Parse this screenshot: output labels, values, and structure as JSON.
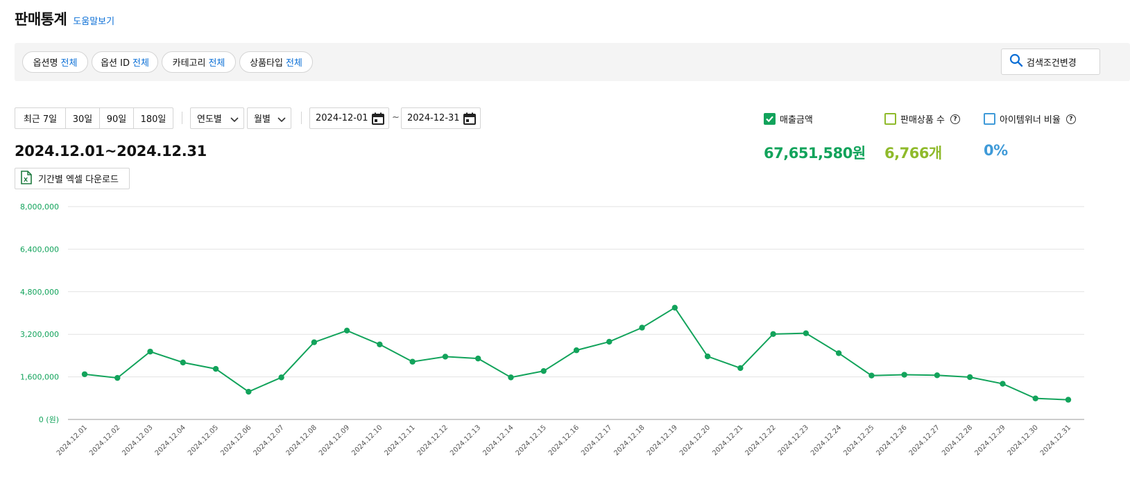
{
  "header": {
    "title": "판매통계",
    "help_link": "도움말보기"
  },
  "filters": [
    {
      "label": "옵션명",
      "value": "전체"
    },
    {
      "label": "옵션 ID",
      "value": "전체"
    },
    {
      "label": "카테고리",
      "value": "전체"
    },
    {
      "label": "상품타입",
      "value": "전체"
    }
  ],
  "search_button": {
    "label": "검색조건변경",
    "icon": "search-icon"
  },
  "period_buttons": [
    "최근 7일",
    "30일",
    "90일",
    "180일"
  ],
  "selects": {
    "yearly": "연도별",
    "monthly": "월별"
  },
  "date_range": {
    "start": "2024-12-01",
    "separator": "~",
    "end": "2024-12-31"
  },
  "range_title": "2024.12.01~2024.12.31",
  "excel_button": {
    "label": "기간별 엑셀 다운로드",
    "icon": "excel-file-icon"
  },
  "legend": [
    {
      "label": "매출금액",
      "checked": true,
      "color": "#12a35b",
      "has_help": false
    },
    {
      "label": "판매상품 수",
      "checked": false,
      "color": "#8fba2b",
      "has_help": true
    },
    {
      "label": "아이템위너 비율",
      "checked": false,
      "color": "#3f9ad8",
      "has_help": true
    }
  ],
  "metrics": {
    "sales_amount": {
      "value": "67,651,580원",
      "color": "#12a35b"
    },
    "items_sold": {
      "value": "6,766개",
      "color": "#8fba2b"
    },
    "winner_ratio": {
      "value": "0%",
      "color": "#3f9ad8"
    }
  },
  "chart_data": {
    "type": "line",
    "series": [
      {
        "name": "매출금액",
        "color": "#12a35b",
        "values": [
          1700000,
          1560000,
          2550000,
          2140000,
          1900000,
          1040000,
          1580000,
          2900000,
          3340000,
          2820000,
          2170000,
          2360000,
          2290000,
          1580000,
          1820000,
          2600000,
          2920000,
          3450000,
          4200000,
          2370000,
          1930000,
          3210000,
          3240000,
          2490000,
          1650000,
          1680000,
          1660000,
          1590000,
          1340000,
          790000,
          740000
        ]
      }
    ],
    "categories": [
      "2024.12.01",
      "2024.12.02",
      "2024.12.03",
      "2024.12.04",
      "2024.12.05",
      "2024.12.06",
      "2024.12.07",
      "2024.12.08",
      "2024.12.09",
      "2024.12.10",
      "2024.12.11",
      "2024.12.12",
      "2024.12.13",
      "2024.12.14",
      "2024.12.15",
      "2024.12.16",
      "2024.12.17",
      "2024.12.18",
      "2024.12.19",
      "2024.12.20",
      "2024.12.21",
      "2024.12.22",
      "2024.12.23",
      "2024.12.24",
      "2024.12.25",
      "2024.12.26",
      "2024.12.27",
      "2024.12.28",
      "2024.12.29",
      "2024.12.30",
      "2024.12.31"
    ],
    "y_ticks": [
      "0 (원)",
      "1,600,000",
      "3,200,000",
      "4,800,000",
      "6,400,000",
      "8,000,000"
    ],
    "ylim": [
      0,
      8000000
    ],
    "grid": true
  }
}
